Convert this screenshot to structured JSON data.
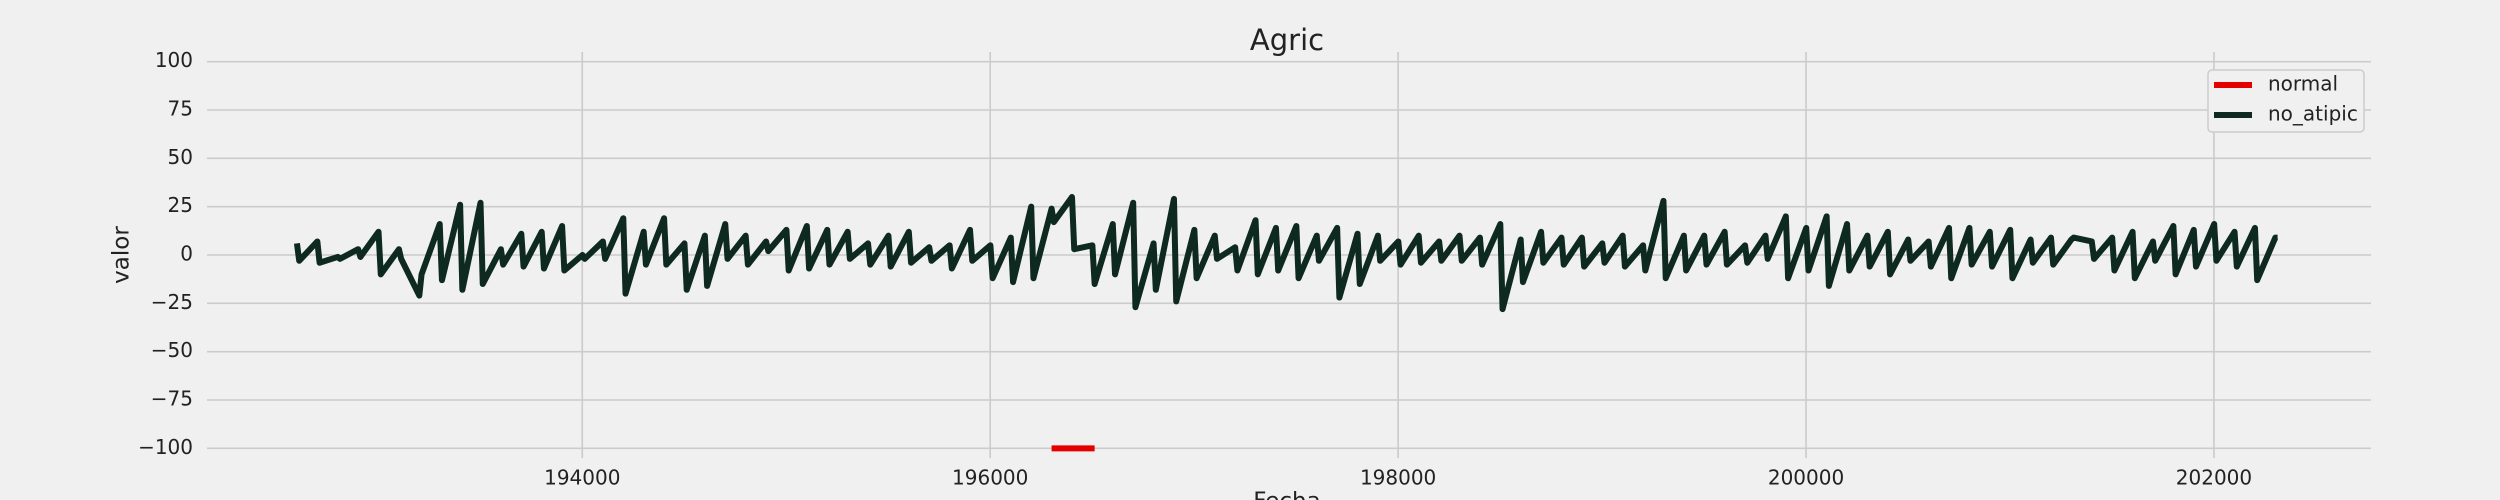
{
  "chart_data": {
    "type": "line",
    "title": "Agric",
    "x_label": "Fecha",
    "y_label": "valor",
    "xlim": [
      192160,
      202770
    ],
    "ylim": [
      -105,
      105
    ],
    "xticks": [
      194000,
      196000,
      198000,
      200000,
      202000
    ],
    "yticks": [
      {
        "value": -100,
        "label": "−100"
      },
      {
        "value": -75,
        "label": "−75"
      },
      {
        "value": -50,
        "label": "−50"
      },
      {
        "value": -25,
        "label": "−25"
      },
      0,
      25,
      50,
      75,
      100
    ],
    "grid": true,
    "legend": "upper right",
    "series": [
      {
        "name": "normal",
        "color": "#e50000",
        "x": [
          196301,
          196512
        ],
        "values": [
          -100,
          -100
        ]
      },
      {
        "name": "no_atipic",
        "color": "#0e2a20",
        "x": [
          192601,
          192612,
          192701,
          192712,
          192801,
          192812,
          192901,
          192912,
          193001,
          193012,
          193101,
          193112,
          193201,
          193212,
          193301,
          193312,
          193401,
          193412,
          193501,
          193512,
          193601,
          193612,
          193701,
          193712,
          193801,
          193812,
          193901,
          193912,
          194001,
          194012,
          194101,
          194112,
          194201,
          194212,
          194301,
          194312,
          194401,
          194412,
          194501,
          194512,
          194601,
          194612,
          194701,
          194712,
          194801,
          194812,
          194901,
          194912,
          195001,
          195012,
          195101,
          195112,
          195201,
          195212,
          195301,
          195312,
          195401,
          195412,
          195501,
          195512,
          195601,
          195612,
          195701,
          195712,
          195801,
          195812,
          195901,
          195912,
          196001,
          196012,
          196101,
          196112,
          196201,
          196212,
          196301,
          196312,
          196401,
          196412,
          196501,
          196512,
          196601,
          196612,
          196701,
          196712,
          196801,
          196812,
          196901,
          196912,
          197001,
          197012,
          197101,
          197112,
          197201,
          197212,
          197301,
          197312,
          197401,
          197412,
          197501,
          197512,
          197601,
          197612,
          197701,
          197712,
          197801,
          197812,
          197901,
          197912,
          198001,
          198012,
          198101,
          198112,
          198201,
          198212,
          198301,
          198312,
          198401,
          198412,
          198501,
          198512,
          198601,
          198612,
          198701,
          198712,
          198801,
          198812,
          198901,
          198912,
          199001,
          199012,
          199101,
          199112,
          199201,
          199212,
          199301,
          199312,
          199401,
          199412,
          199501,
          199512,
          199601,
          199612,
          199701,
          199712,
          199801,
          199812,
          199901,
          199912,
          200001,
          200012,
          200101,
          200112,
          200201,
          200212,
          200301,
          200312,
          200401,
          200412,
          200501,
          200512,
          200601,
          200612,
          200701,
          200712,
          200801,
          200812,
          200901,
          200912,
          201001,
          201012,
          201101,
          201112,
          201201,
          201212,
          201301,
          201312,
          201401,
          201412,
          201501,
          201512,
          201601,
          201612,
          201701,
          201712,
          201801,
          201812,
          201901,
          201912,
          202001,
          202012,
          202101,
          202112,
          202201,
          202212,
          202301,
          202312
        ],
        "values": [
          6,
          -3,
          7,
          -4,
          -1,
          -2,
          3,
          -1,
          12,
          -10,
          3,
          -2,
          -21,
          -10,
          16,
          -13,
          26,
          -18,
          27,
          -15,
          3,
          -5,
          11,
          -6,
          12,
          -7,
          15,
          -8,
          0,
          -2,
          7,
          -2,
          19,
          -20,
          12,
          -5,
          19,
          -5,
          6,
          -18,
          10,
          -16,
          16,
          -2,
          10,
          -5,
          7,
          2,
          13,
          -8,
          15,
          -7,
          13,
          -5,
          12,
          -2,
          6,
          -5,
          10,
          -6,
          12,
          -4,
          4,
          -3,
          5,
          -7,
          13,
          -3,
          5,
          -12,
          9,
          -14,
          25,
          -12,
          24,
          17,
          30,
          3,
          5,
          -15,
          16,
          -10,
          27,
          -27,
          6,
          -18,
          29,
          -24,
          13,
          -12,
          10,
          -2,
          4,
          -8,
          18,
          -10,
          14,
          -8,
          15,
          -12,
          10,
          -3,
          14,
          -22,
          11,
          -15,
          10,
          -3,
          7,
          -5,
          10,
          -4,
          7,
          -3,
          10,
          -3,
          9,
          -5,
          16,
          -28,
          8,
          -14,
          12,
          -4,
          9,
          -5,
          9,
          -6,
          6,
          -4,
          10,
          -6,
          5,
          -8,
          28,
          -12,
          10,
          -8,
          10,
          -5,
          12,
          -5,
          5,
          -4,
          10,
          -2,
          20,
          -12,
          14,
          -8,
          20,
          -16,
          16,
          -8,
          10,
          -6,
          12,
          -10,
          8,
          -3,
          7,
          -6,
          14,
          -12,
          14,
          -5,
          12,
          -6,
          13,
          -12,
          8,
          -4,
          9,
          -5,
          8,
          9,
          7,
          -2,
          9,
          -8,
          12,
          -12,
          7,
          -3,
          15,
          -10,
          13,
          -6,
          16,
          -3,
          12,
          -6,
          14,
          -13,
          9,
          9
        ]
      }
    ]
  }
}
